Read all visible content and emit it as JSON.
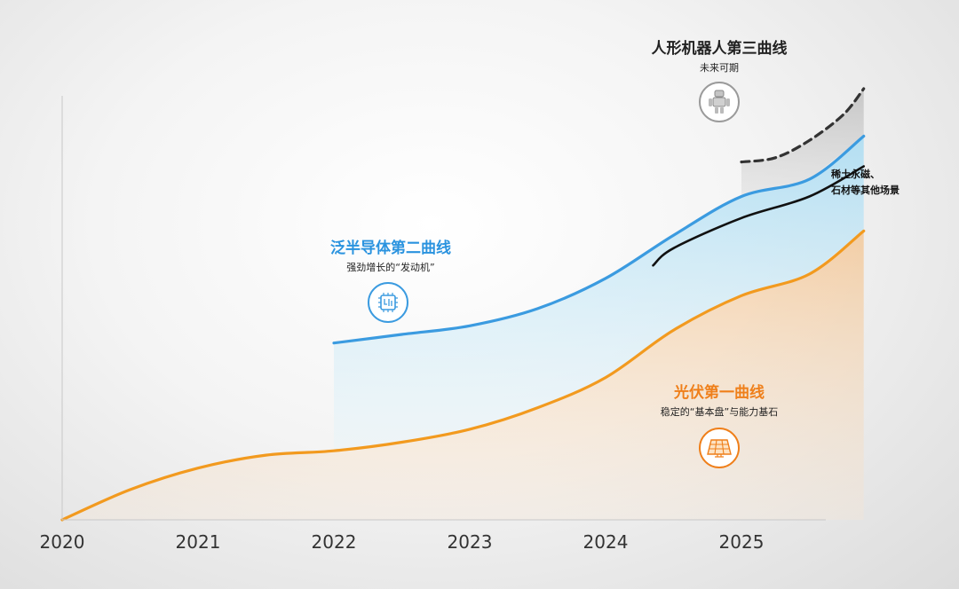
{
  "chart_data": {
    "type": "area",
    "x_axis_ticks": [
      "2020",
      "2021",
      "2022",
      "2023",
      "2024",
      "2025"
    ],
    "y_axis_label": "",
    "series": [
      {
        "key": "pv",
        "title": "光伏第一曲线",
        "subtitle": "稳定的“基本盘”与能力基石",
        "color": "#f29a1f",
        "x": [
          2020.0,
          2020.5,
          2021.0,
          2021.5,
          2022.0,
          2022.5,
          2023.0,
          2023.5,
          2024.0,
          2024.5,
          2025.0,
          2025.5,
          2025.9
        ],
        "y": [
          0,
          7,
          12,
          15,
          16,
          18,
          21,
          26,
          33,
          44,
          52,
          57,
          67
        ]
      },
      {
        "key": "semi",
        "title": "泛半导体第二曲线",
        "subtitle": "强劲增长的“发动机”",
        "color": "#3b9be0",
        "x": [
          2022.0,
          2022.5,
          2023.0,
          2023.5,
          2024.0,
          2024.5,
          2025.0,
          2025.5,
          2025.9
        ],
        "y": [
          41,
          43,
          45,
          49,
          56,
          66,
          75,
          79,
          89
        ]
      },
      {
        "key": "rare",
        "title": "稀土永磁、石材等其他场景",
        "color": "#111111",
        "x": [
          2024.35,
          2024.5,
          2025.0,
          2025.5,
          2025.9
        ],
        "y": [
          59,
          63,
          70,
          75,
          82
        ]
      },
      {
        "key": "robot",
        "title": "人形机器人第三曲线",
        "subtitle": "未来可期",
        "color": "#333333",
        "style": "dashed",
        "x": [
          2025.0,
          2025.25,
          2025.5,
          2025.75,
          2025.9
        ],
        "y": [
          83,
          84,
          88,
          94,
          100
        ]
      }
    ],
    "ylim": [
      0,
      100
    ],
    "xlim": [
      2020,
      2026
    ]
  },
  "labels": {
    "robot_title": "人形机器人第三曲线",
    "robot_sub": "未来可期",
    "semi_title": "泛半导体第二曲线",
    "semi_sub": "强劲增长的“发动机”",
    "pv_title": "光伏第一曲线",
    "pv_sub": "稳定的“基本盘”与能力基石",
    "other_line1": "稀土永磁、",
    "other_line2": "石材等其他场景"
  },
  "icons": {
    "robot": "robot-icon",
    "chip": "chip-icon",
    "solar": "solar-panel-icon"
  }
}
